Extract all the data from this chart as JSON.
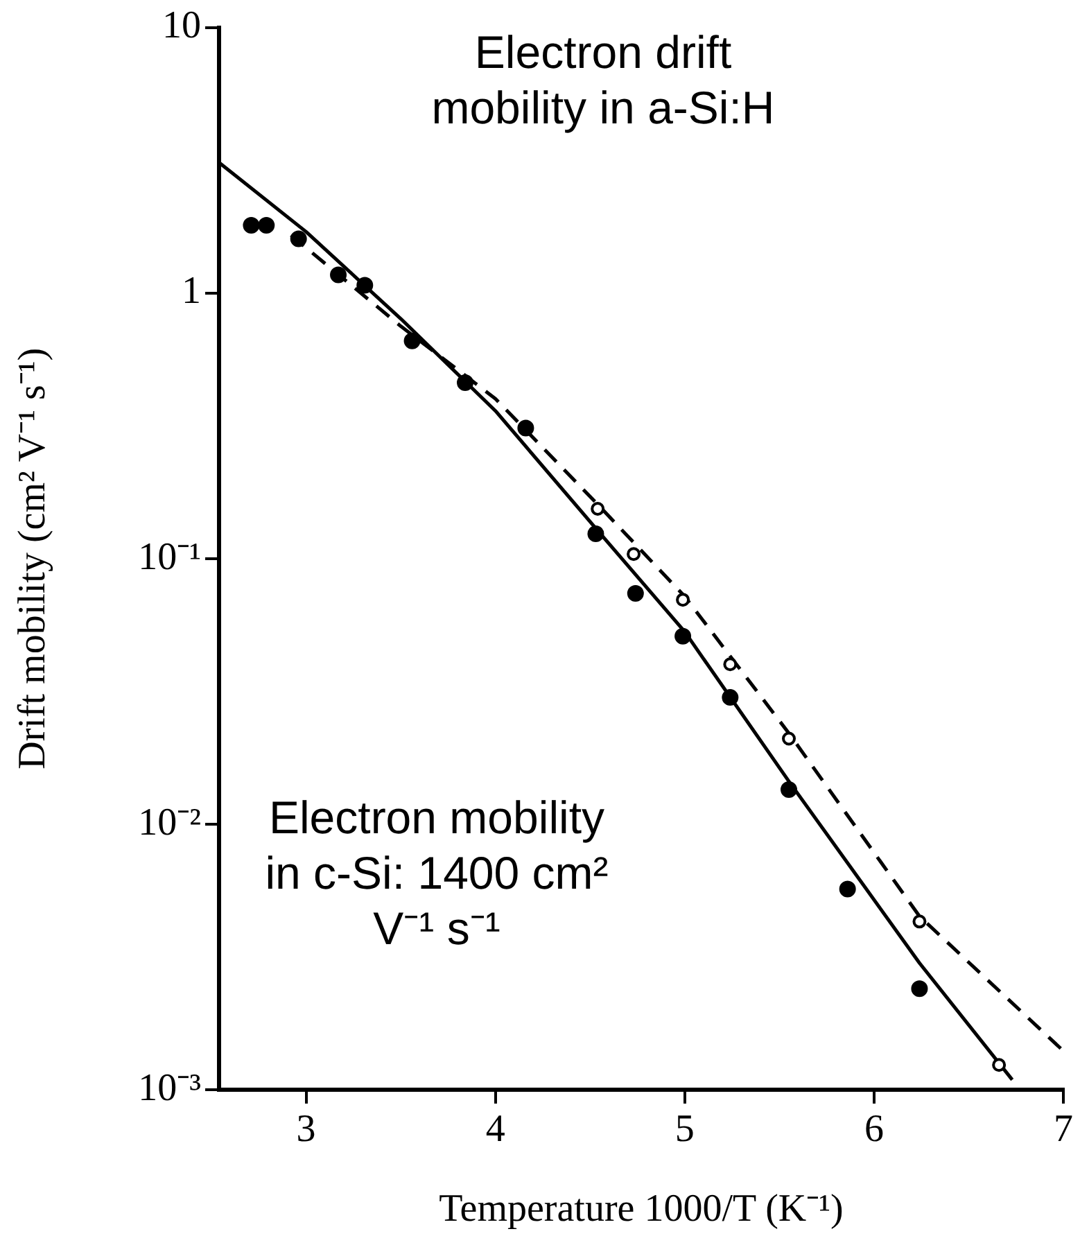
{
  "chart_data": {
    "type": "scatter",
    "xlabel": "Temperature 1000/T (K⁻¹)",
    "ylabel": "Drift mobility (cm² V⁻¹ s⁻¹)",
    "log": "y",
    "grid": false,
    "legend": false,
    "xlim": [
      2.54,
      7
    ],
    "xticks": [
      3,
      4,
      5,
      6,
      7
    ],
    "ylim": [
      0.001,
      10
    ],
    "yticks": [
      {
        "value": 0.001,
        "label": "10⁻³"
      },
      {
        "value": 0.01,
        "label": "10⁻²"
      },
      {
        "value": 0.1,
        "label": "10⁻¹"
      },
      1,
      10
    ],
    "annotations": [
      "Electron drift mobility in a-Si:H",
      "Electron mobility in c-Si: 1400 cm² V⁻¹ s⁻¹"
    ],
    "series": [
      {
        "marker": "circle",
        "color": "#000000",
        "x": [
          2.71,
          2.79,
          2.96,
          3.17,
          3.31,
          3.56,
          3.84,
          4.16,
          4.53,
          4.74,
          4.99,
          5.24,
          5.55,
          5.86,
          6.24
        ],
        "values": [
          1.8,
          1.8,
          1.6,
          1.17,
          1.07,
          0.66,
          0.46,
          0.31,
          0.124,
          0.074,
          0.051,
          0.03,
          0.0135,
          0.0057,
          0.0024
        ]
      },
      {
        "marker": "circle",
        "color": "#000000",
        "x": [
          4.54,
          4.73,
          4.99,
          5.24,
          5.55,
          6.24,
          6.66
        ],
        "values": [
          0.154,
          0.104,
          0.07,
          0.04,
          0.021,
          0.0043,
          0.00124
        ]
      },
      {
        "type": "line",
        "marker": "none",
        "line_style": "solid",
        "color": "#000000",
        "x": [
          2.54,
          3.0,
          3.5,
          4.0,
          4.53,
          5.0,
          5.55,
          6.24,
          6.73
        ],
        "values": [
          3.1,
          1.7,
          0.8,
          0.36,
          0.13,
          0.053,
          0.0145,
          0.003,
          0.00109
        ]
      },
      {
        "type": "line",
        "marker": "none",
        "line_style": "dashed",
        "color": "#000000",
        "x": [
          2.92,
          3.5,
          4.0,
          4.54,
          5.0,
          5.55,
          6.24,
          7.0
        ],
        "values": [
          1.65,
          0.75,
          0.4,
          0.16,
          0.072,
          0.022,
          0.0045,
          0.0014
        ]
      }
    ]
  }
}
